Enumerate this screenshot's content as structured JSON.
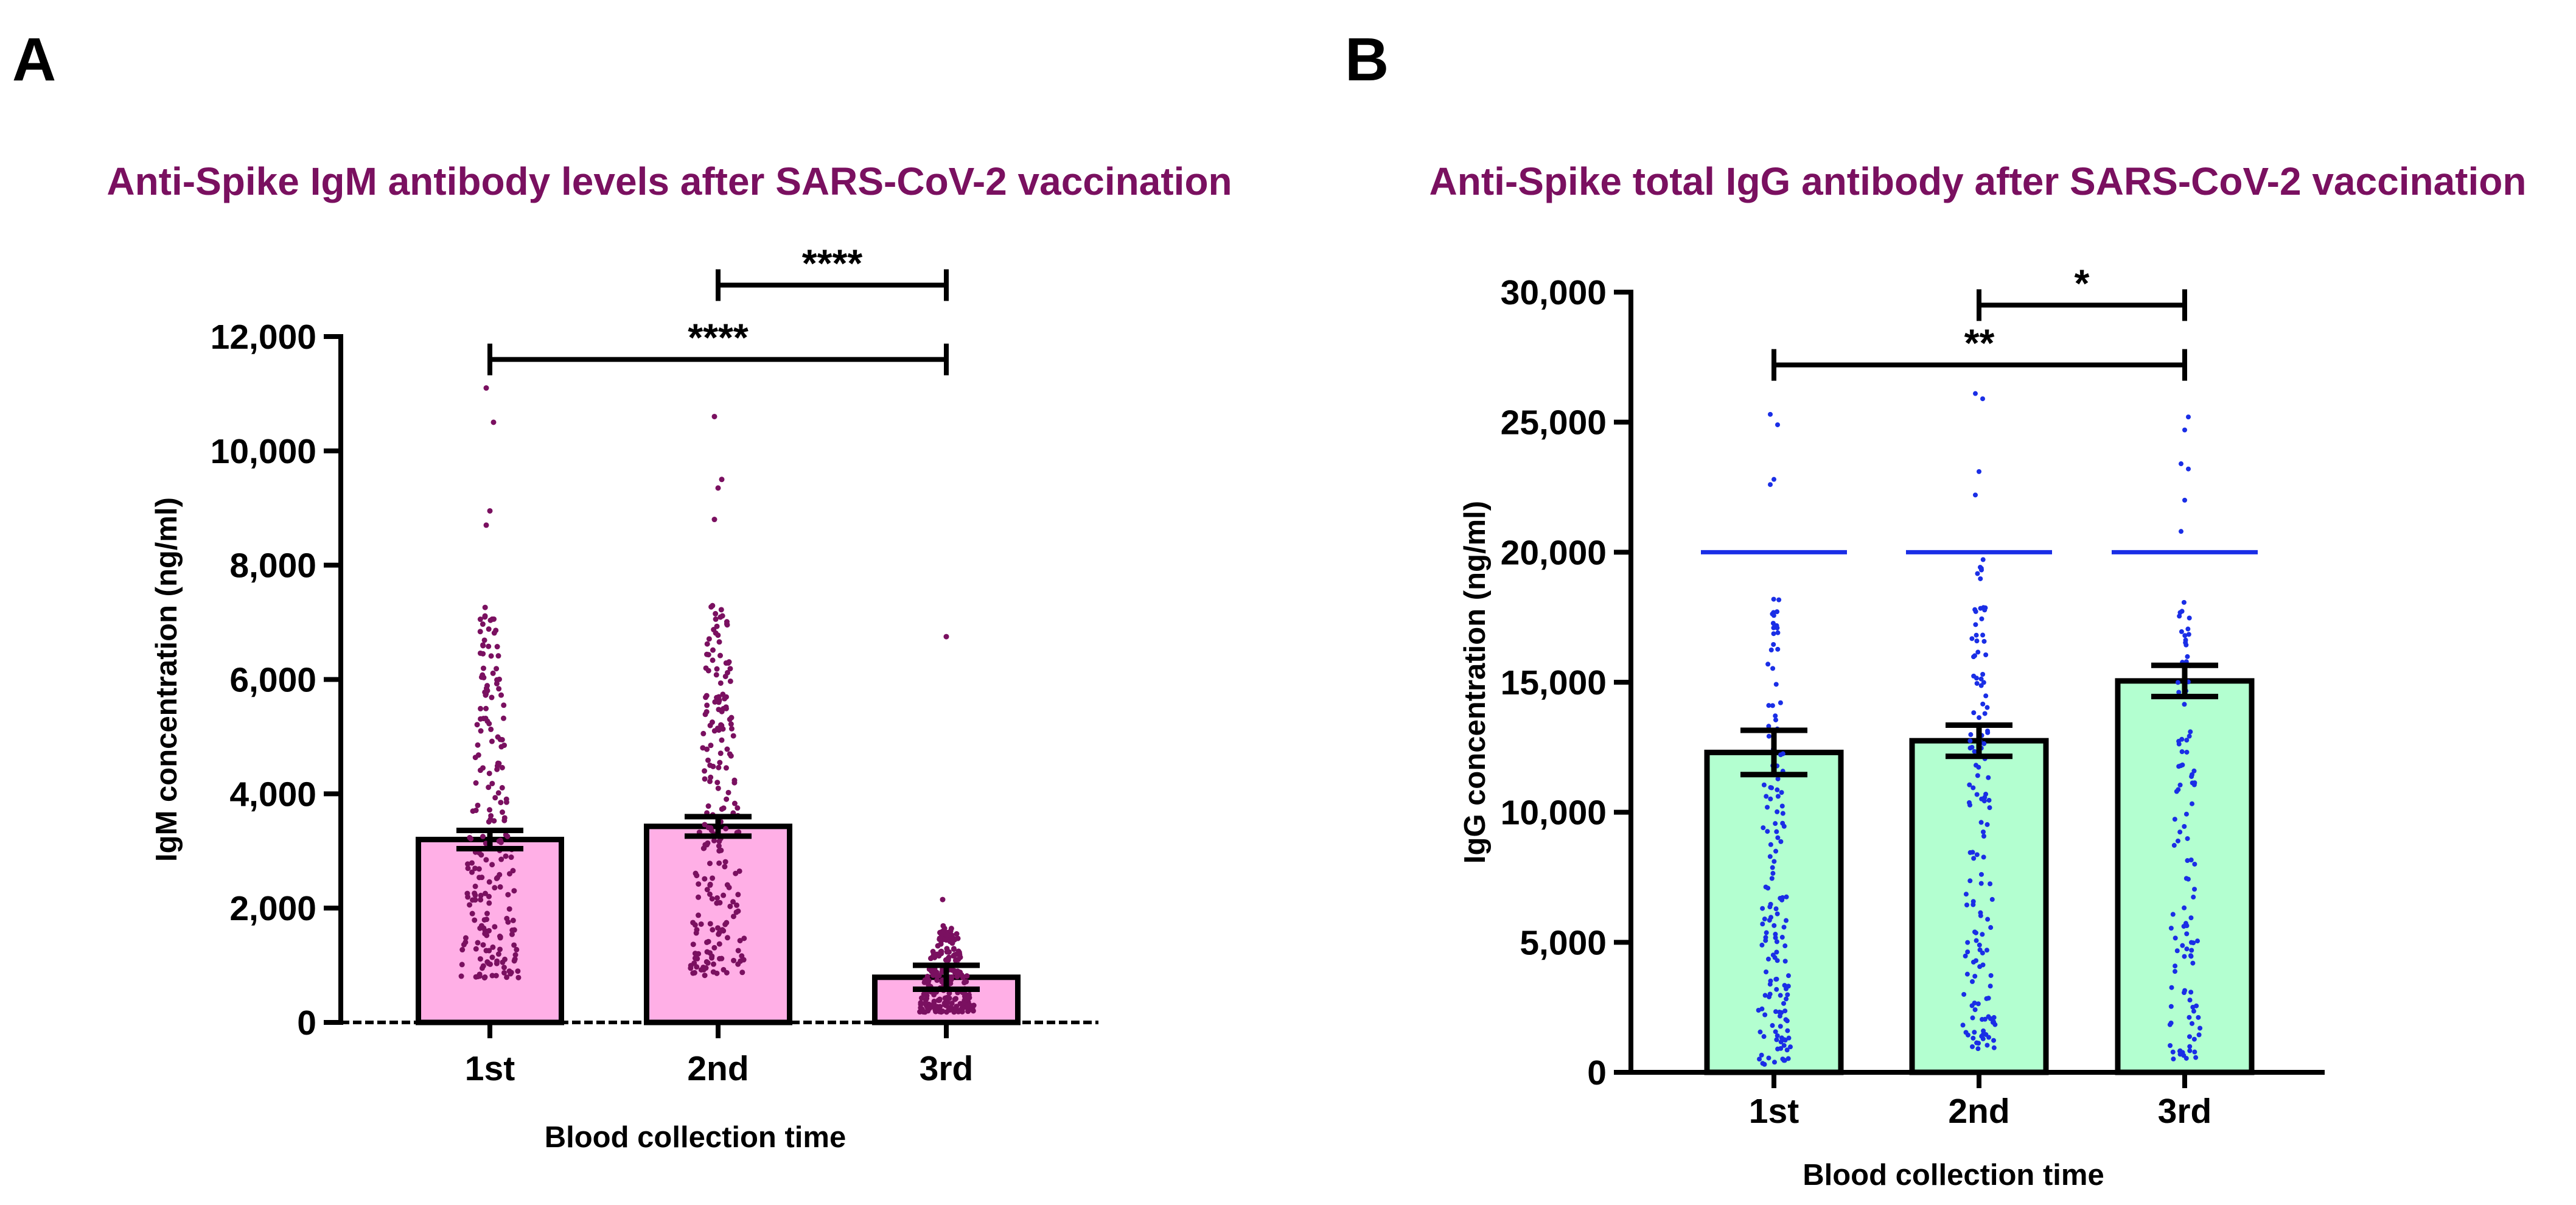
{
  "chart_data": [
    {
      "panel": "A",
      "type": "bar",
      "title": "Anti-Spike IgM antibody levels after SARS-CoV-2 vaccination",
      "title_color": "#7a1060",
      "xlabel": "Blood collection time",
      "ylabel": "IgM concentration (ng/ml)",
      "categories": [
        "1st",
        "2nd",
        "3rd"
      ],
      "values": [
        3200,
        3430,
        790
      ],
      "error": [
        160,
        170,
        210
      ],
      "ylim": [
        0,
        12000
      ],
      "yticks": [
        0,
        2000,
        4000,
        6000,
        8000,
        10000,
        12000
      ],
      "ytick_labels": [
        "0",
        "2,000",
        "4,000",
        "6,000",
        "8,000",
        "10,000",
        "12,000"
      ],
      "bar_color": "#ffafe6",
      "point_color": "#7a1060",
      "points": [
        {
          "min": 780,
          "max": 7300,
          "n": 210,
          "outliers": [
            8700,
            8950,
            10500,
            11100
          ]
        },
        {
          "min": 780,
          "max": 7300,
          "n": 210,
          "outliers": [
            8800,
            9350,
            9500,
            10600
          ]
        },
        {
          "min": 180,
          "max": 1700,
          "n": 220,
          "outliers": [
            2150,
            6750
          ]
        }
      ],
      "significance": [
        {
          "from": "2nd",
          "to": "3rd",
          "label": "****",
          "y": 12900
        },
        {
          "from": "1st",
          "to": "3rd",
          "label": "****",
          "y": 11600
        }
      ]
    },
    {
      "panel": "B",
      "type": "bar",
      "title": "Anti-Spike total IgG antibody after SARS-CoV-2 vaccination",
      "title_color": "#7a1060",
      "xlabel": "Blood collection time",
      "ylabel": "IgG concentration (ng/ml)",
      "categories": [
        "1st",
        "2nd",
        "3rd"
      ],
      "values": [
        12300,
        12750,
        15050
      ],
      "error": [
        850,
        600,
        600
      ],
      "ylim": [
        0,
        30000
      ],
      "yticks": [
        0,
        5000,
        10000,
        15000,
        20000,
        25000,
        30000
      ],
      "ytick_labels": [
        "0",
        "5,000",
        "10,000",
        "15,000",
        "20,000",
        "25,000",
        "30,000"
      ],
      "bar_color": "#b3ffd0",
      "point_color": "#1a2ee6",
      "cap_value": 20000,
      "points": [
        {
          "min": 300,
          "max": 18600,
          "n": 150,
          "outliers": [
            22600,
            22800,
            24900,
            25300
          ]
        },
        {
          "min": 900,
          "max": 19800,
          "n": 140,
          "outliers": [
            22200,
            23100,
            25900,
            26100
          ]
        },
        {
          "min": 500,
          "max": 18500,
          "n": 110,
          "outliers": [
            20800,
            22000,
            23200,
            23400,
            24700,
            25200
          ]
        }
      ],
      "significance": [
        {
          "from": "2nd",
          "to": "3rd",
          "label": "*",
          "y": 29500
        },
        {
          "from": "1st",
          "to": "3rd",
          "label": "**",
          "y": 27200
        }
      ]
    }
  ]
}
